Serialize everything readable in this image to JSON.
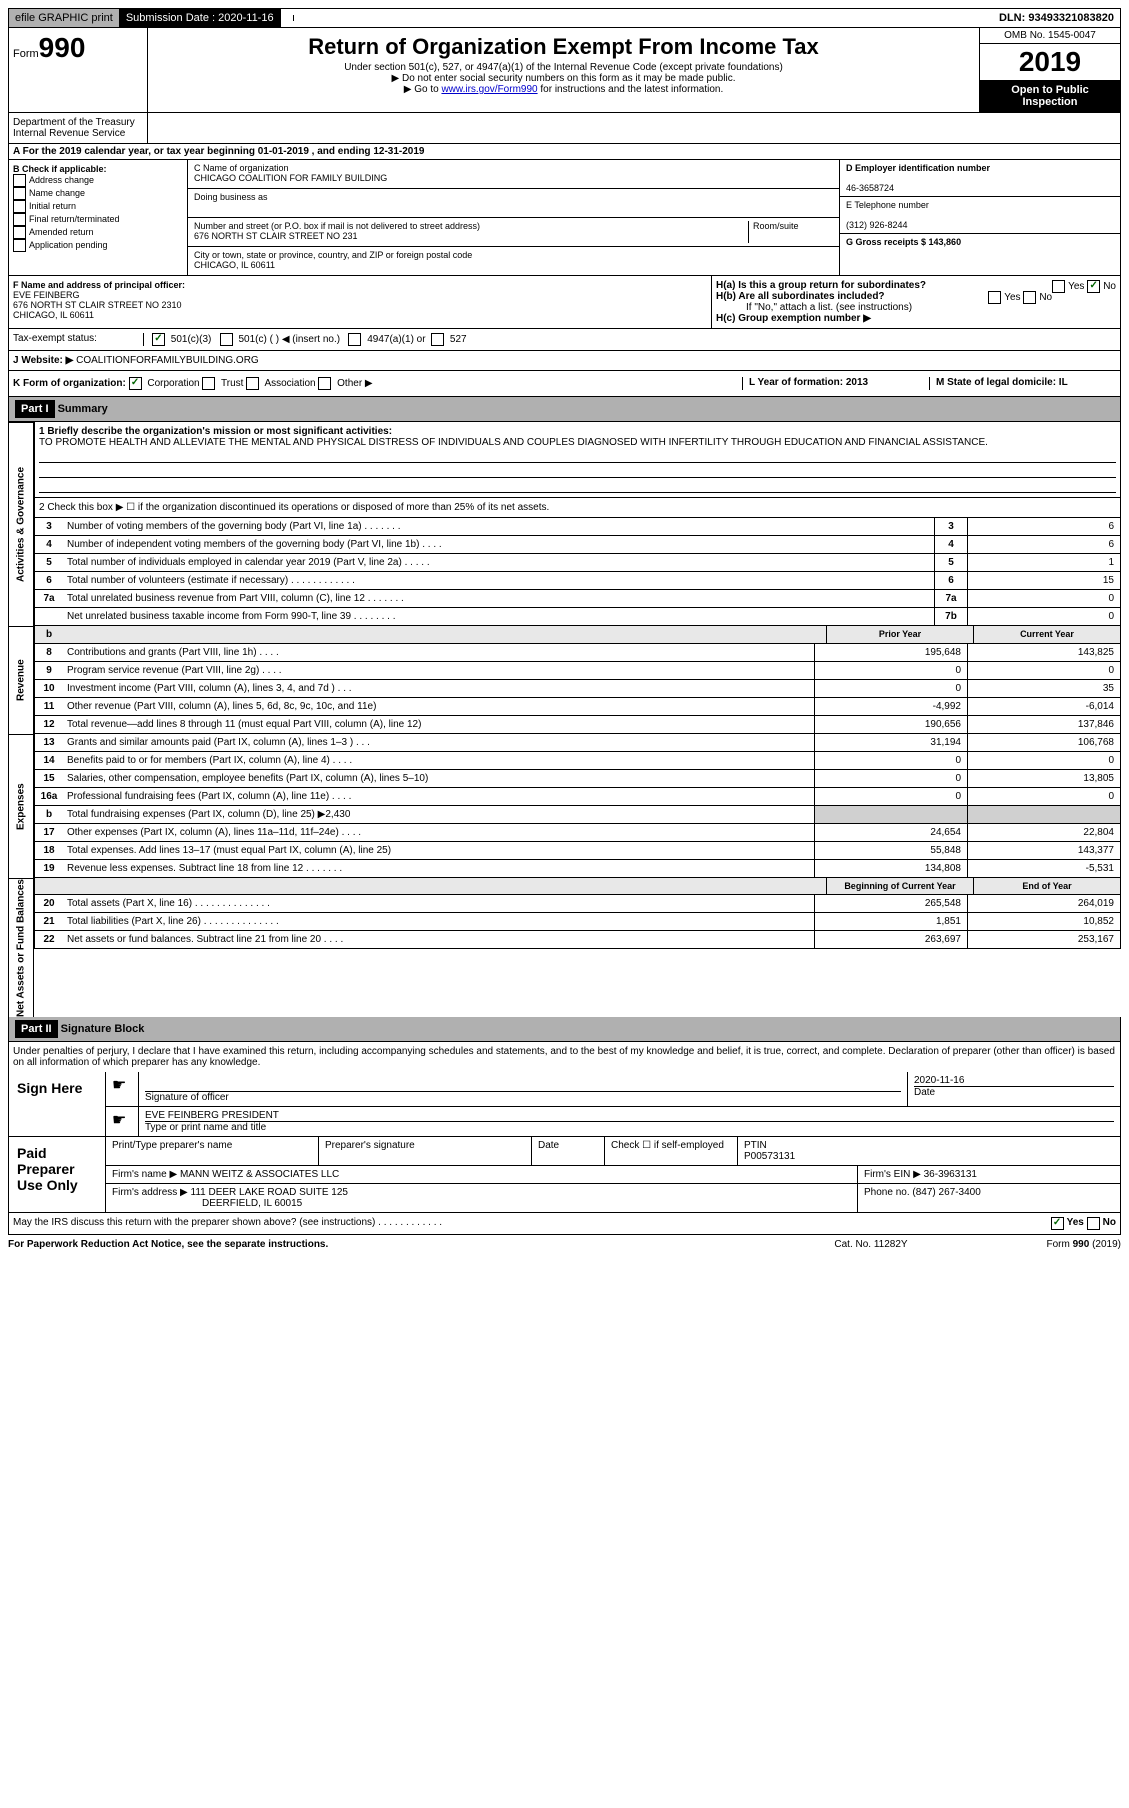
{
  "top": {
    "efile": "efile GRAPHIC print",
    "sub_label": "Submission Date : 2020-11-16",
    "dln": "DLN: 93493321083820"
  },
  "header": {
    "form_prefix": "Form",
    "form_num": "990",
    "title": "Return of Organization Exempt From Income Tax",
    "sub1": "Under section 501(c), 527, or 4947(a)(1) of the Internal Revenue Code (except private foundations)",
    "sub2": "▶ Do not enter social security numbers on this form as it may be made public.",
    "sub3_pre": "▶ Go to ",
    "sub3_link": "www.irs.gov/Form990",
    "sub3_post": " for instructions and the latest information.",
    "omb": "OMB No. 1545-0047",
    "year": "2019",
    "open": "Open to Public Inspection",
    "dept": "Department of the Treasury\nInternal Revenue Service"
  },
  "section_a": {
    "tax_year": "A For the 2019 calendar year, or tax year beginning 01-01-2019   , and ending 12-31-2019",
    "b_label": "B Check if applicable:",
    "b_items": [
      "Address change",
      "Name change",
      "Initial return",
      "Final return/terminated",
      "Amended return",
      "Application pending"
    ],
    "c_label": "C Name of organization",
    "c_name": "CHICAGO COALITION FOR FAMILY BUILDING",
    "dba_label": "Doing business as",
    "addr_label": "Number and street (or P.O. box if mail is not delivered to street address)",
    "room_label": "Room/suite",
    "addr": "676 NORTH ST CLAIR STREET NO 231",
    "city_label": "City or town, state or province, country, and ZIP or foreign postal code",
    "city": "CHICAGO, IL  60611",
    "d_label": "D Employer identification number",
    "d_val": "46-3658724",
    "e_label": "E Telephone number",
    "e_val": "(312) 926-8244",
    "g_label": "G Gross receipts $ 143,860",
    "f_label": "F  Name and address of principal officer:",
    "f_name": "EVE FEINBERG",
    "f_addr": "676 NORTH ST CLAIR STREET NO 2310\nCHICAGO, IL  60611",
    "h_a": "H(a)  Is this a group return for subordinates?",
    "h_b": "H(b)  Are all subordinates included?",
    "h_b_note": "If \"No,\" attach a list. (see instructions)",
    "h_c": "H(c)  Group exemption number ▶",
    "tax_status_label": "Tax-exempt status:",
    "tax_501c3": "501(c)(3)",
    "tax_501c": "501(c) (  ) ◀ (insert no.)",
    "tax_4947": "4947(a)(1) or",
    "tax_527": "527",
    "website_label": "J  Website: ▶",
    "website": "COALITIONFORFAMILYBUILDING.ORG",
    "k_label": "K Form of organization:",
    "k_corp": "Corporation",
    "k_trust": "Trust",
    "k_assoc": "Association",
    "k_other": "Other ▶",
    "l_label": "L Year of formation: 2013",
    "m_label": "M State of legal domicile: IL"
  },
  "part1": {
    "header": "Part I",
    "title": "Summary",
    "line1_label": "1  Briefly describe the organization's mission or most significant activities:",
    "mission": "TO PROMOTE HEALTH AND ALLEVIATE THE MENTAL AND PHYSICAL DISTRESS OF INDIVIDUALS AND COUPLES DIAGNOSED WITH INFERTILITY THROUGH EDUCATION AND FINANCIAL ASSISTANCE.",
    "line2": "2   Check this box ▶ ☐  if the organization discontinued its operations or disposed of more than 25% of its net assets.",
    "side_activities": "Activities & Governance",
    "side_revenue": "Revenue",
    "side_expenses": "Expenses",
    "side_netassets": "Net Assets or Fund Balances",
    "col_prior": "Prior Year",
    "col_current": "Current Year",
    "col_begin": "Beginning of Current Year",
    "col_end": "End of Year",
    "lines_gov": [
      {
        "n": "3",
        "d": "Number of voting members of the governing body (Part VI, line 1a)   .    .    .    .    .    .    .",
        "b": "3",
        "v": "6"
      },
      {
        "n": "4",
        "d": "Number of independent voting members of the governing body (Part VI, line 1b)   .    .    .    .",
        "b": "4",
        "v": "6"
      },
      {
        "n": "5",
        "d": "Total number of individuals employed in calendar year 2019 (Part V, line 2a)   .    .    .    .    .",
        "b": "5",
        "v": "1"
      },
      {
        "n": "6",
        "d": "Total number of volunteers (estimate if necessary)   .    .    .    .    .    .    .    .    .    .    .    .",
        "b": "6",
        "v": "15"
      },
      {
        "n": "7a",
        "d": "Total unrelated business revenue from Part VIII, column (C), line 12   .    .    .    .    .    .    .",
        "b": "7a",
        "v": "0"
      },
      {
        "n": "",
        "d": "Net unrelated business taxable income from Form 990-T, line 39   .    .    .    .    .    .    .    .",
        "b": "7b",
        "v": "0"
      }
    ],
    "lines_rev": [
      {
        "n": "8",
        "d": "Contributions and grants (Part VIII, line 1h)   .    .    .    .",
        "p": "195,648",
        "c": "143,825"
      },
      {
        "n": "9",
        "d": "Program service revenue (Part VIII, line 2g)   .    .    .    .",
        "p": "0",
        "c": "0"
      },
      {
        "n": "10",
        "d": "Investment income (Part VIII, column (A), lines 3, 4, and 7d )   .    .    .",
        "p": "0",
        "c": "35"
      },
      {
        "n": "11",
        "d": "Other revenue (Part VIII, column (A), lines 5, 6d, 8c, 9c, 10c, and 11e)",
        "p": "-4,992",
        "c": "-6,014"
      },
      {
        "n": "12",
        "d": "Total revenue—add lines 8 through 11 (must equal Part VIII, column (A), line 12)",
        "p": "190,656",
        "c": "137,846"
      }
    ],
    "lines_exp": [
      {
        "n": "13",
        "d": "Grants and similar amounts paid (Part IX, column (A), lines 1–3 )   .    .    .",
        "p": "31,194",
        "c": "106,768"
      },
      {
        "n": "14",
        "d": "Benefits paid to or for members (Part IX, column (A), line 4)   .    .    .    .",
        "p": "0",
        "c": "0"
      },
      {
        "n": "15",
        "d": "Salaries, other compensation, employee benefits (Part IX, column (A), lines 5–10)",
        "p": "0",
        "c": "13,805"
      },
      {
        "n": "16a",
        "d": "Professional fundraising fees (Part IX, column (A), line 11e)   .    .    .    .",
        "p": "0",
        "c": "0"
      },
      {
        "n": "b",
        "d": "Total fundraising expenses (Part IX, column (D), line 25) ▶2,430",
        "p": "",
        "c": "",
        "shade": true
      },
      {
        "n": "17",
        "d": "Other expenses (Part IX, column (A), lines 11a–11d, 11f–24e)   .    .    .    .",
        "p": "24,654",
        "c": "22,804"
      },
      {
        "n": "18",
        "d": "Total expenses. Add lines 13–17 (must equal Part IX, column (A), line 25)",
        "p": "55,848",
        "c": "143,377"
      },
      {
        "n": "19",
        "d": "Revenue less expenses. Subtract line 18 from line 12   .    .    .    .    .    .    .",
        "p": "134,808",
        "c": "-5,531"
      }
    ],
    "lines_net": [
      {
        "n": "20",
        "d": "Total assets (Part X, line 16)   .    .    .    .    .    .    .    .    .    .    .    .    .    .",
        "p": "265,548",
        "c": "264,019"
      },
      {
        "n": "21",
        "d": "Total liabilities (Part X, line 26)   .    .    .    .    .    .    .    .    .    .    .    .    .    .",
        "p": "1,851",
        "c": "10,852"
      },
      {
        "n": "22",
        "d": "Net assets or fund balances. Subtract line 21 from line 20   .    .    .    .",
        "p": "263,697",
        "c": "253,167"
      }
    ]
  },
  "part2": {
    "header": "Part II",
    "title": "Signature Block",
    "declaration": "Under penalties of perjury, I declare that I have examined this return, including accompanying schedules and statements, and to the best of my knowledge and belief, it is true, correct, and complete. Declaration of preparer (other than officer) is based on all information of which preparer has any knowledge.",
    "sign_here": "Sign Here",
    "sig_officer": "Signature of officer",
    "sig_date": "2020-11-16",
    "date_label": "Date",
    "officer_name": "EVE FEINBERG PRESIDENT",
    "type_label": "Type or print name and title",
    "paid_label": "Paid Preparer Use Only",
    "prep_name_label": "Print/Type preparer's name",
    "prep_sig_label": "Preparer's signature",
    "prep_date_label": "Date",
    "check_self": "Check ☐ if self-employed",
    "ptin_label": "PTIN",
    "ptin": "P00573131",
    "firm_name_label": "Firm's name    ▶",
    "firm_name": "MANN WEITZ & ASSOCIATES LLC",
    "firm_ein_label": "Firm's EIN ▶",
    "firm_ein": "36-3963131",
    "firm_addr_label": "Firm's address ▶",
    "firm_addr": "111 DEER LAKE ROAD SUITE 125",
    "firm_city": "DEERFIELD, IL  60015",
    "phone_label": "Phone no.",
    "phone": "(847) 267-3400",
    "discuss": "May the IRS discuss this return with the preparer shown above? (see instructions)   .    .    .    .    .    .    .    .    .    .    .    .",
    "yes_label": "Yes",
    "no_label": "No"
  },
  "footer": {
    "paperwork": "For Paperwork Reduction Act Notice, see the separate instructions.",
    "cat": "Cat. No. 11282Y",
    "form": "Form 990 (2019)"
  }
}
